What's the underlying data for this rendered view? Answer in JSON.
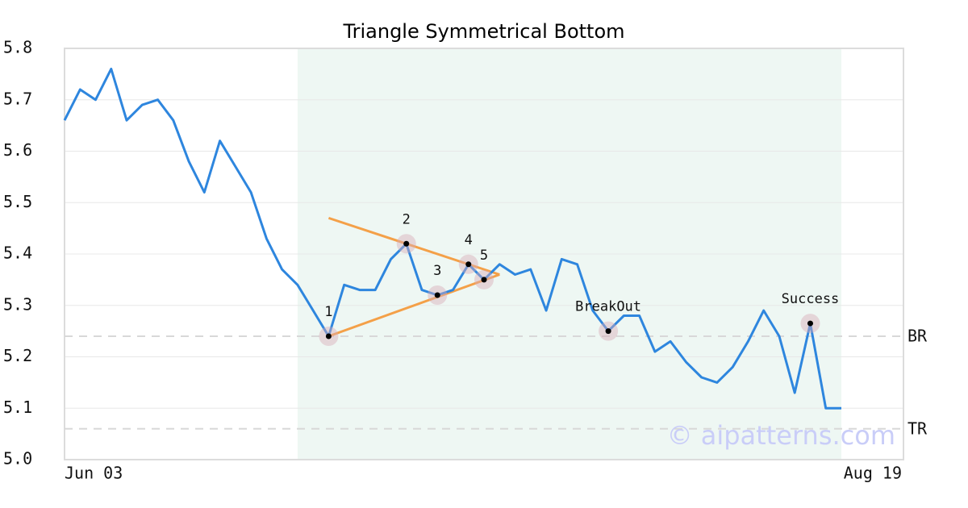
{
  "chart_data": {
    "type": "line",
    "title": "Triangle Symmetrical Bottom",
    "categories": [
      "Jun 03",
      null,
      null,
      null,
      null,
      null,
      null,
      null,
      null,
      null,
      null,
      null,
      null,
      null,
      null,
      null,
      null,
      null,
      null,
      null,
      null,
      null,
      null,
      null,
      null,
      null,
      null,
      null,
      null,
      null,
      null,
      null,
      null,
      null,
      null,
      null,
      null,
      null,
      null,
      null,
      null,
      null,
      null,
      null,
      null,
      null,
      null,
      null,
      null,
      null,
      "Aug 19"
    ],
    "values": [
      5.66,
      5.72,
      5.7,
      5.76,
      5.66,
      5.69,
      5.7,
      5.66,
      5.58,
      5.52,
      5.62,
      5.57,
      5.52,
      5.43,
      5.37,
      5.34,
      5.29,
      5.24,
      5.34,
      5.33,
      5.33,
      5.39,
      5.42,
      5.33,
      5.32,
      5.33,
      5.38,
      5.35,
      5.38,
      5.36,
      5.37,
      5.29,
      5.39,
      5.38,
      5.29,
      5.25,
      5.28,
      5.28,
      5.21,
      5.23,
      5.19,
      5.16,
      5.15,
      5.18,
      5.23,
      5.29,
      5.24,
      5.13,
      5.265,
      5.1,
      5.1
    ],
    "color": "#2e86de",
    "ylim": [
      5.0,
      5.8
    ],
    "yticks": [
      {
        "value": 5.0,
        "label": "5.0"
      },
      5.1,
      5.2,
      5.3,
      5.4,
      5.5,
      5.6,
      5.7,
      5.8
    ],
    "grid": true,
    "highlight": {
      "from": 15,
      "to": 50,
      "color": "#eef7f3"
    },
    "trendlines": [
      {
        "from": 17,
        "to": 28,
        "values": [
          5.47,
          5.36
        ],
        "color": "#f4a048"
      },
      {
        "from": 17,
        "to": 28,
        "values": [
          5.24,
          5.36
        ],
        "color": "#f4a048"
      }
    ],
    "levels": [
      {
        "label": "BR",
        "value": 5.24
      },
      {
        "label": "TR",
        "value": 5.06
      }
    ],
    "points": [
      {
        "label": "1",
        "index": 17,
        "value": 5.24
      },
      {
        "label": "2",
        "index": 22,
        "value": 5.42
      },
      {
        "label": "3",
        "index": 24,
        "value": 5.32
      },
      {
        "label": "4",
        "index": 26,
        "value": 5.38
      },
      {
        "label": "5",
        "index": 27,
        "value": 5.35
      },
      {
        "label": "BreakOut",
        "index": 35,
        "value": 5.25
      },
      {
        "label": "Success",
        "index": 48,
        "value": 5.265
      }
    ],
    "watermark": "© aipatterns.com"
  }
}
